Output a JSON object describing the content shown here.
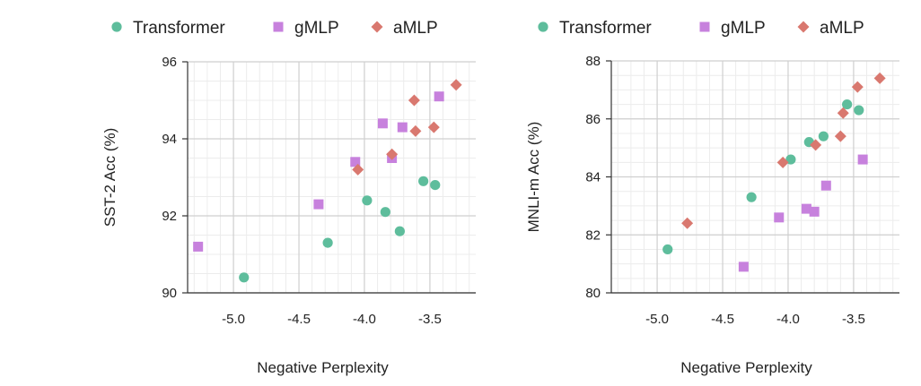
{
  "chart_data": [
    {
      "type": "scatter",
      "xlabel": "Negative Perplexity",
      "ylabel": "SST-2 Acc (%)",
      "xlim": [
        -5.35,
        -3.15
      ],
      "ylim": [
        90,
        96
      ],
      "xticks": [
        -5.0,
        -4.5,
        -4.0,
        -3.5
      ],
      "xtick_labels": [
        "-5.0",
        "-4.5",
        "-4.0",
        "-3.5"
      ],
      "yticks": [
        90,
        92,
        94,
        96
      ],
      "ytick_labels": [
        "90",
        "92",
        "94",
        "96"
      ],
      "grid": true,
      "legend": "top",
      "series": [
        {
          "name": "Transformer",
          "marker": "circle",
          "color": "#5ebd9c",
          "points": [
            [
              -4.92,
              90.4
            ],
            [
              -4.28,
              91.3
            ],
            [
              -3.98,
              92.4
            ],
            [
              -3.84,
              92.1
            ],
            [
              -3.73,
              91.6
            ],
            [
              -3.55,
              92.9
            ],
            [
              -3.46,
              92.8
            ]
          ]
        },
        {
          "name": "gMLP",
          "marker": "square",
          "color": "#c781dd",
          "points": [
            [
              -5.27,
              91.2
            ],
            [
              -4.35,
              92.3
            ],
            [
              -4.07,
              93.4
            ],
            [
              -3.86,
              94.4
            ],
            [
              -3.79,
              93.5
            ],
            [
              -3.71,
              94.3
            ],
            [
              -3.43,
              95.1
            ]
          ]
        },
        {
          "name": "aMLP",
          "marker": "diamond",
          "color": "#d9786f",
          "points": [
            [
              -4.05,
              93.2
            ],
            [
              -3.79,
              93.6
            ],
            [
              -3.62,
              95.0
            ],
            [
              -3.61,
              94.2
            ],
            [
              -3.47,
              94.3
            ],
            [
              -3.3,
              95.4
            ]
          ]
        }
      ]
    },
    {
      "type": "scatter",
      "xlabel": "Negative Perplexity",
      "ylabel": "MNLI-m Acc (%)",
      "xlim": [
        -5.35,
        -3.15
      ],
      "ylim": [
        80,
        88
      ],
      "xticks": [
        -5.0,
        -4.5,
        -4.0,
        -3.5
      ],
      "xtick_labels": [
        "-5.0",
        "-4.5",
        "-4.0",
        "-3.5"
      ],
      "yticks": [
        80,
        82,
        84,
        86,
        88
      ],
      "ytick_labels": [
        "80",
        "82",
        "84",
        "86",
        "88"
      ],
      "grid": true,
      "legend": "top",
      "series": [
        {
          "name": "Transformer",
          "marker": "circle",
          "color": "#5ebd9c",
          "points": [
            [
              -4.92,
              81.5
            ],
            [
              -4.28,
              83.3
            ],
            [
              -3.98,
              84.6
            ],
            [
              -3.84,
              85.2
            ],
            [
              -3.73,
              85.4
            ],
            [
              -3.55,
              86.5
            ],
            [
              -3.46,
              86.3
            ]
          ]
        },
        {
          "name": "gMLP",
          "marker": "square",
          "color": "#c781dd",
          "points": [
            [
              -4.34,
              80.9
            ],
            [
              -4.07,
              82.6
            ],
            [
              -3.86,
              82.9
            ],
            [
              -3.8,
              82.8
            ],
            [
              -3.71,
              83.7
            ],
            [
              -3.43,
              84.6
            ]
          ]
        },
        {
          "name": "aMLP",
          "marker": "diamond",
          "color": "#d9786f",
          "points": [
            [
              -4.77,
              82.4
            ],
            [
              -4.04,
              84.5
            ],
            [
              -3.79,
              85.1
            ],
            [
              -3.6,
              85.4
            ],
            [
              -3.58,
              86.2
            ],
            [
              -3.47,
              87.1
            ],
            [
              -3.3,
              87.4
            ]
          ]
        }
      ]
    }
  ]
}
